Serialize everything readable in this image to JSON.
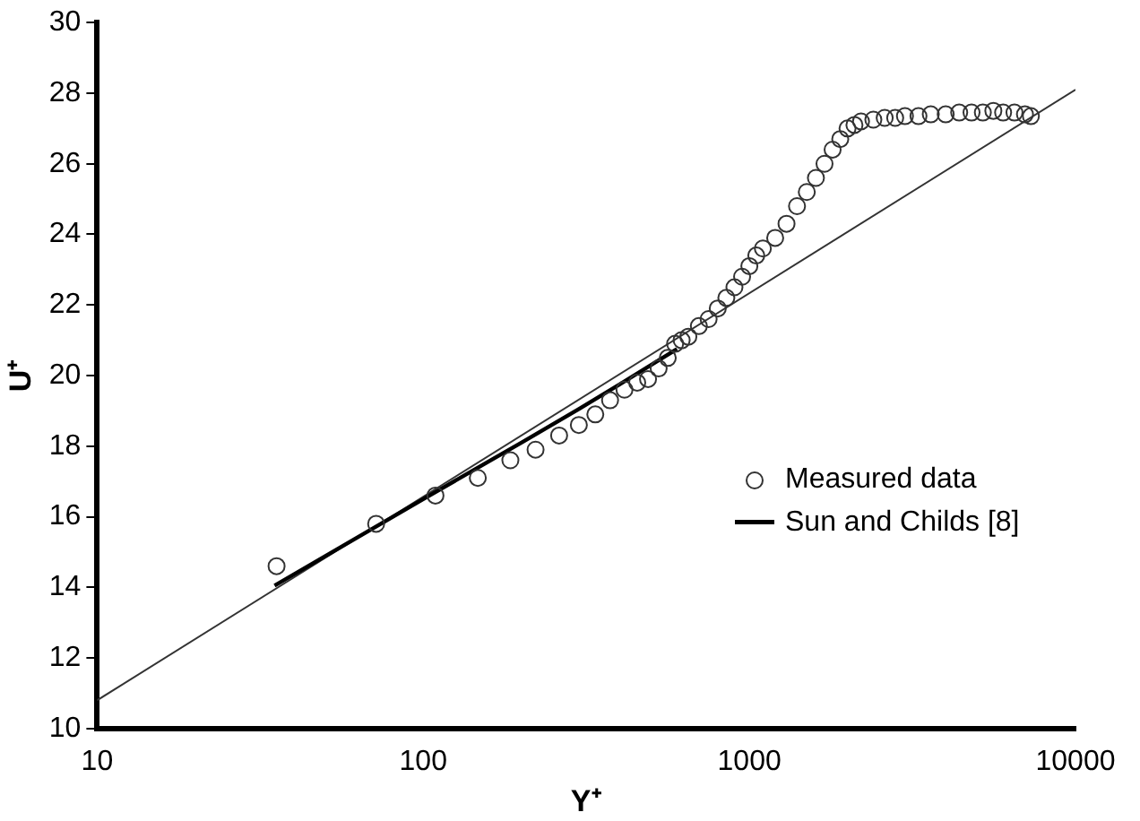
{
  "chart_data": {
    "type": "scatter",
    "xlabel": "Y⁺",
    "ylabel": "U⁺",
    "log": "x",
    "xlim": [
      10,
      10000
    ],
    "xticks": [
      10,
      100,
      1000,
      10000
    ],
    "ylim": [
      10,
      30
    ],
    "yticks": [
      10,
      12,
      14,
      16,
      18,
      20,
      22,
      24,
      26,
      28,
      30
    ],
    "grid": false,
    "legend": "right",
    "series": [
      {
        "name": "Measured data",
        "marker": "circle",
        "color": "#333333",
        "x": [
          35.5,
          71.7,
          109,
          147,
          185,
          221,
          261,
          300,
          337,
          374,
          414,
          453,
          489,
          527,
          562,
          592,
          620,
          650,
          700,
          750,
          800,
          850,
          900,
          950,
          1000,
          1050,
          1100,
          1200,
          1300,
          1400,
          1500,
          1600,
          1700,
          1800,
          1900,
          2000,
          2100,
          2200,
          2400,
          2600,
          2800,
          3000,
          3300,
          3600,
          4000,
          4400,
          4800,
          5200,
          5600,
          6000,
          6500,
          7000,
          7300
        ],
        "values": [
          14.6,
          15.8,
          16.6,
          17.1,
          17.6,
          17.9,
          18.3,
          18.6,
          18.9,
          19.3,
          19.6,
          19.8,
          19.9,
          20.2,
          20.5,
          20.9,
          21.0,
          21.1,
          21.4,
          21.6,
          21.9,
          22.2,
          22.5,
          22.8,
          23.1,
          23.4,
          23.6,
          23.9,
          24.3,
          24.8,
          25.2,
          25.6,
          26.0,
          26.4,
          26.7,
          27.0,
          27.1,
          27.2,
          27.25,
          27.3,
          27.3,
          27.35,
          27.35,
          27.4,
          27.4,
          27.45,
          27.45,
          27.45,
          27.5,
          27.45,
          27.45,
          27.4,
          27.35
        ]
      },
      {
        "name": "Sun and Childs [8]",
        "type": "line",
        "marker": "none",
        "line_style": "solid",
        "color": "#000000",
        "x": [
          35,
          100,
          200,
          300,
          400,
          500,
          600
        ],
        "values": [
          14.05,
          16.5,
          18.1,
          19.05,
          19.75,
          20.3,
          20.75
        ]
      },
      {
        "type": "line",
        "marker": "none",
        "line_style": "solid",
        "color": "#333333",
        "x": [
          10,
          10000
        ],
        "values": [
          10.8,
          28.1
        ]
      }
    ]
  }
}
